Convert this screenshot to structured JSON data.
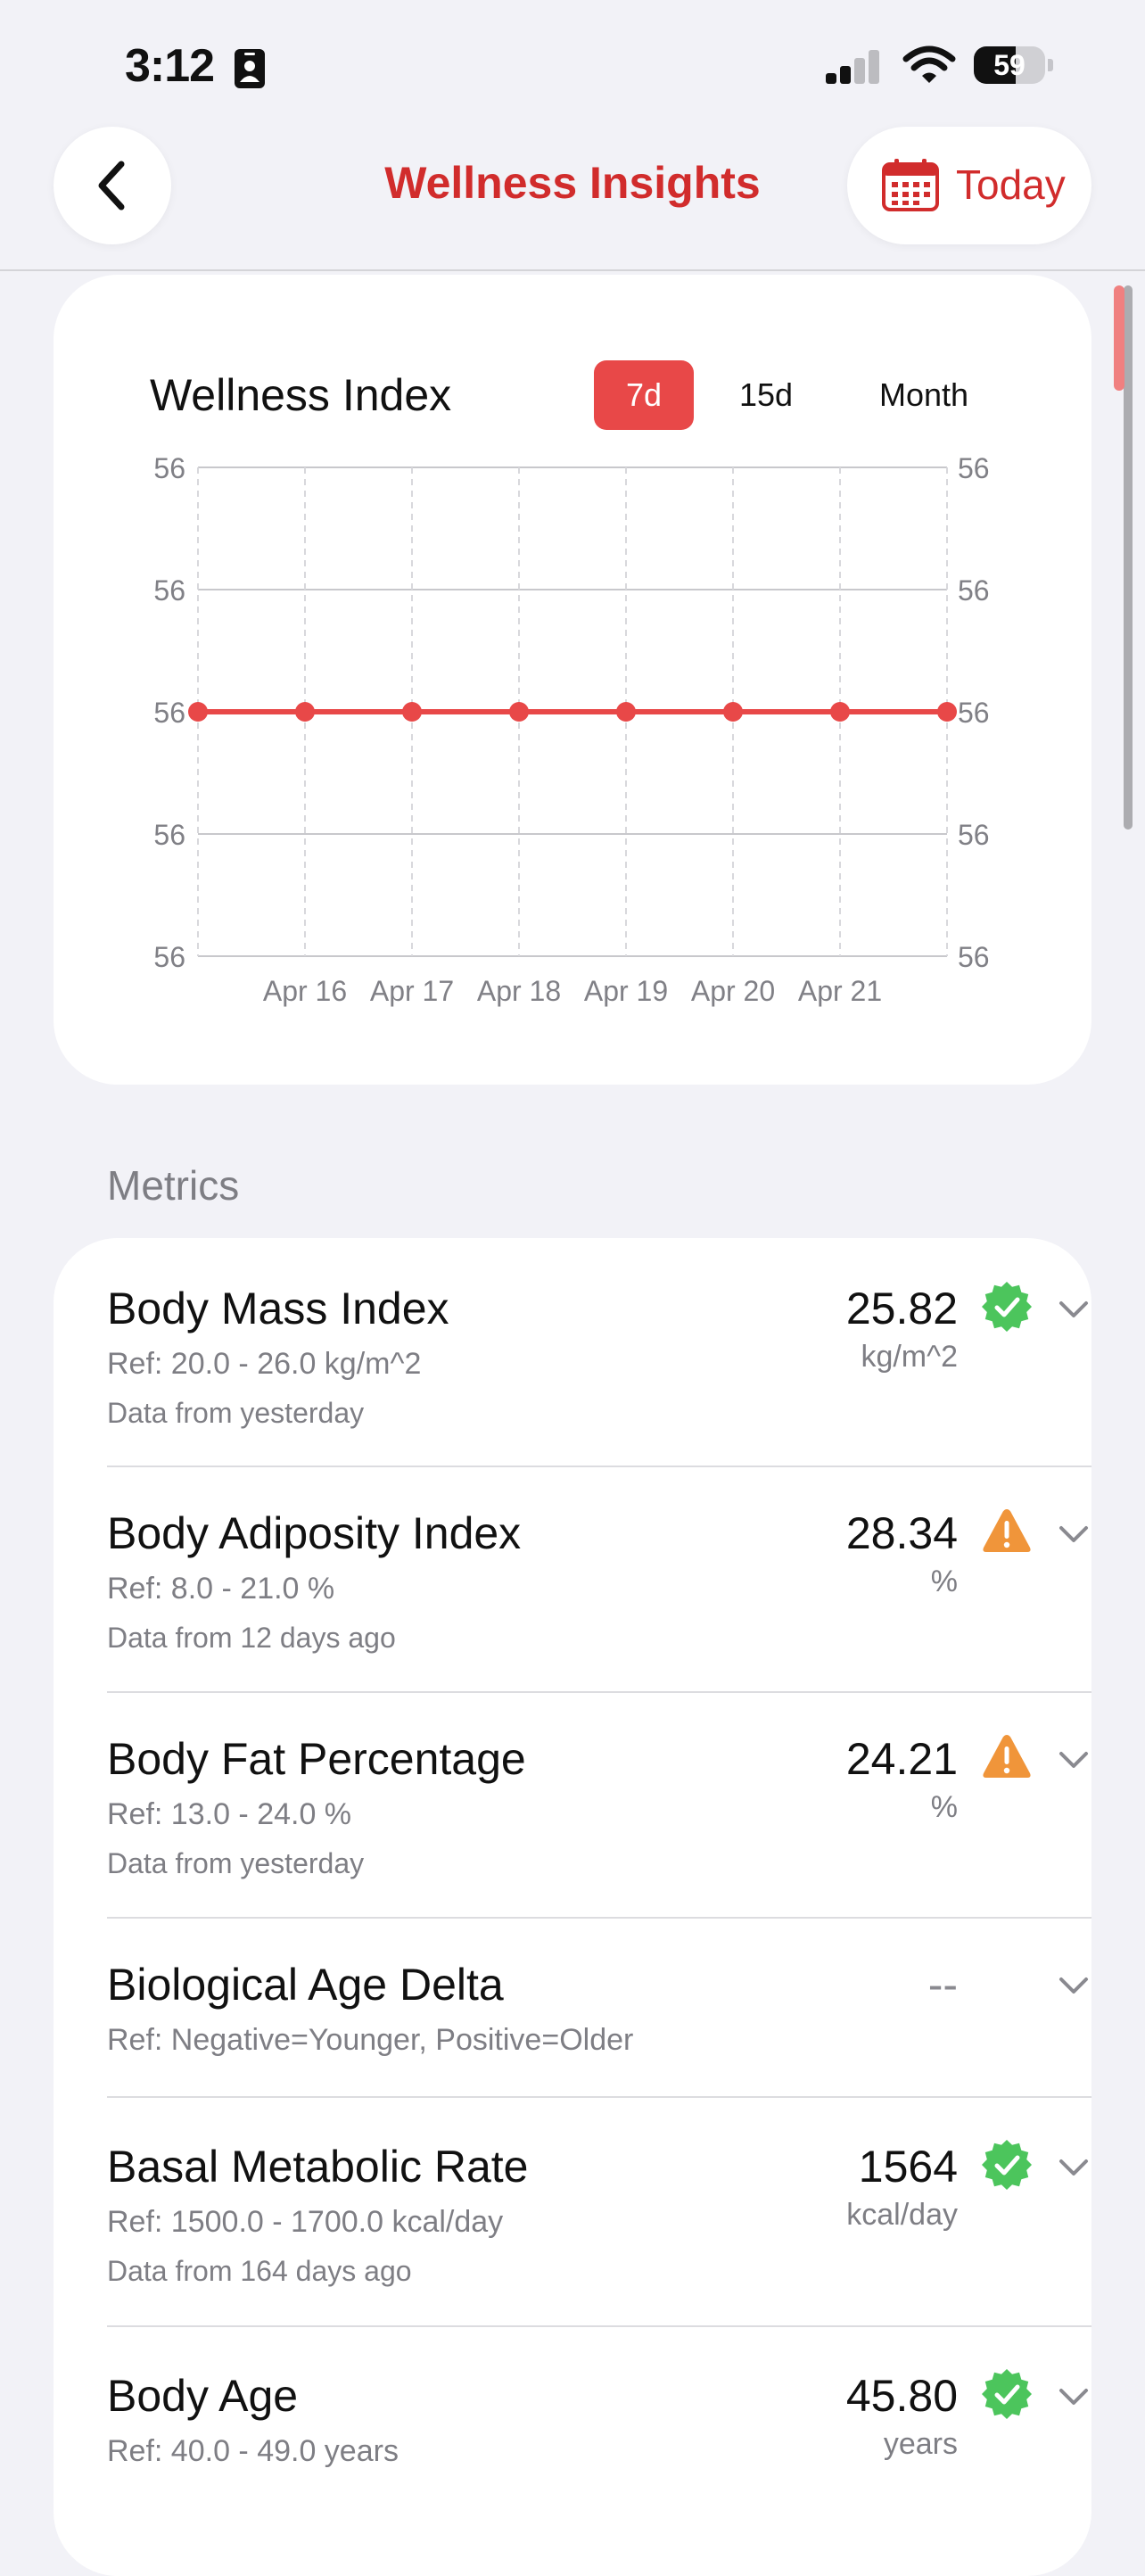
{
  "status_bar": {
    "time": "3:12",
    "battery": "59"
  },
  "nav": {
    "title": "Wellness Insights",
    "today_label": "Today"
  },
  "chart": {
    "title": "Wellness Index",
    "tabs": [
      "7d",
      "15d",
      "Month"
    ],
    "active_tab": 0,
    "line_color": "#e84848"
  },
  "chart_data": {
    "type": "line",
    "title": "Wellness Index",
    "x": [
      "",
      "Apr 16",
      "Apr 17",
      "Apr 18",
      "Apr 19",
      "Apr 20",
      "Apr 21",
      ""
    ],
    "y_ticks_left": [
      "56",
      "56",
      "56",
      "56",
      "56"
    ],
    "y_ticks_right": [
      "56",
      "56",
      "56",
      "56",
      "56"
    ],
    "series": [
      {
        "values": [
          56,
          56,
          56,
          56,
          56,
          56,
          56,
          56
        ]
      }
    ],
    "ylim": [
      54,
      58
    ],
    "grid": true
  },
  "metrics": {
    "header": "Metrics",
    "items": [
      {
        "name": "Body Mass Index",
        "ref": "Ref: 20.0 - 26.0 kg/m^2",
        "source": "Data from yesterday",
        "value": "25.82",
        "unit": "kg/m^2",
        "status": "ok"
      },
      {
        "name": "Body Adiposity Index",
        "ref": "Ref: 8.0 - 21.0 %",
        "source": "Data from 12 days ago",
        "value": "28.34",
        "unit": "%",
        "status": "warning"
      },
      {
        "name": "Body Fat Percentage",
        "ref": "Ref: 13.0 - 24.0 %",
        "source": "Data from yesterday",
        "value": "24.21",
        "unit": "%",
        "status": "warning"
      },
      {
        "name": "Biological Age Delta",
        "ref": "Ref: Negative=Younger, Positive=Older",
        "source": "",
        "value": "--",
        "unit": "",
        "status": "none"
      },
      {
        "name": "Basal Metabolic Rate",
        "ref": "Ref: 1500.0 - 1700.0 kcal/day",
        "source": "Data from 164 days ago",
        "value": "1564",
        "unit": "kcal/day",
        "status": "ok"
      },
      {
        "name": "Body Age",
        "ref": "Ref: 40.0 - 49.0 years",
        "source": "",
        "value": "45.80",
        "unit": "years",
        "status": "ok"
      }
    ]
  },
  "colors": {
    "accent": "#d12c2c",
    "ok": "#4cc55c",
    "warning": "#f0953a"
  }
}
